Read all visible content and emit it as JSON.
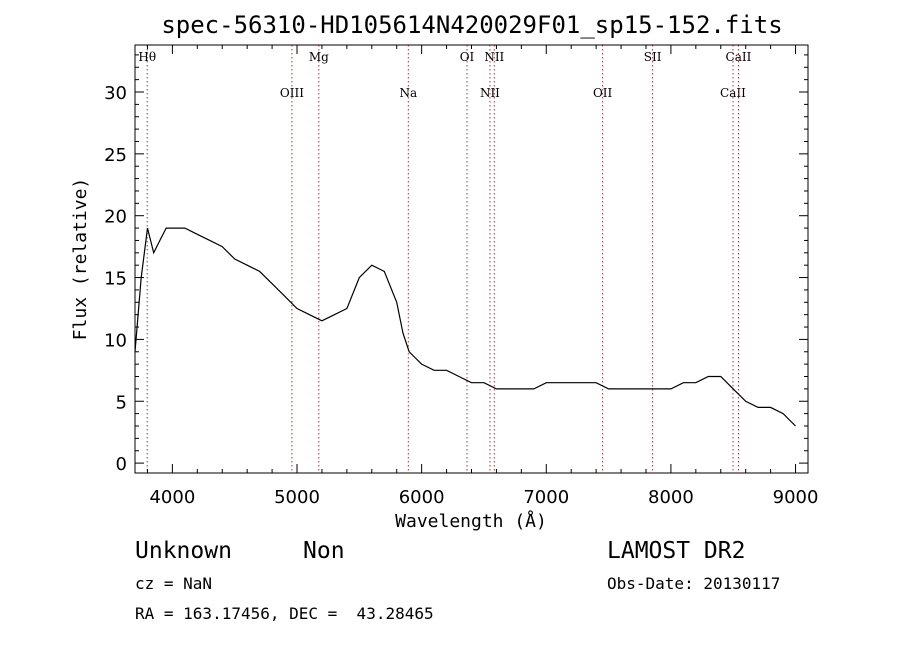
{
  "chart_data": {
    "type": "line",
    "title": "spec-56310-HD105614N420029F01_sp15-152.fits",
    "xlabel": "Wavelength (Å)",
    "ylabel": "Flux (relative)",
    "xlim": [
      3700,
      9100
    ],
    "ylim": [
      -0.8,
      33.8
    ],
    "x_ticks": [
      4000,
      5000,
      6000,
      7000,
      8000,
      9000
    ],
    "y_ticks": [
      0,
      5,
      10,
      15,
      20,
      25,
      30
    ],
    "series": [
      {
        "x": [
          3700,
          3750,
          3800,
          3850,
          3900,
          3950,
          4000,
          4100,
          4200,
          4300,
          4400,
          4500,
          4600,
          4700,
          4800,
          4900,
          5000,
          5100,
          5200,
          5300,
          5400,
          5500,
          5600,
          5700,
          5800,
          5850,
          5900,
          5950,
          6000,
          6100,
          6200,
          6300,
          6400,
          6500,
          6600,
          6700,
          6800,
          6900,
          7000,
          7100,
          7200,
          7300,
          7400,
          7500,
          7600,
          7700,
          7800,
          7900,
          8000,
          8100,
          8200,
          8300,
          8400,
          8500,
          8600,
          8700,
          8800,
          8900,
          9000
        ],
        "values": [
          9,
          15,
          19,
          17,
          18,
          19,
          19,
          19,
          18.5,
          18,
          17.5,
          16.5,
          16,
          15.5,
          14.5,
          13.5,
          12.5,
          12,
          11.5,
          12,
          12.5,
          15,
          16,
          15.5,
          13,
          10.5,
          9,
          8.5,
          8,
          7.5,
          7.5,
          7,
          6.5,
          6.5,
          6,
          6,
          6,
          6,
          6.5,
          6.5,
          6.5,
          6.5,
          6.5,
          6,
          6,
          6,
          6,
          6,
          6,
          6.5,
          6.5,
          7,
          7,
          6,
          5,
          4.5,
          4.5,
          4,
          3
        ]
      }
    ],
    "spectral_lines": [
      {
        "label": "Hθ",
        "wavelength": 3798
      },
      {
        "label": "OIII",
        "wavelength": 4959
      },
      {
        "label": "Mg",
        "wavelength": 5175
      },
      {
        "label": "Na",
        "wavelength": 5893
      },
      {
        "label": "OI",
        "wavelength": 6364
      },
      {
        "label": "NII",
        "wavelength": 6548
      },
      {
        "label": "NII",
        "wavelength": 6583
      },
      {
        "label": "OII",
        "wavelength": 7452
      },
      {
        "label": "SII",
        "wavelength": 7853
      },
      {
        "label": "CaII",
        "wavelength": 8498
      },
      {
        "label": "CaII",
        "wavelength": 8542
      }
    ]
  },
  "info": {
    "object_class": "Unknown",
    "subclass": "Non",
    "survey": "LAMOST DR2",
    "redshift": "cz = NaN",
    "obs_date": "Obs-Date: 20130117",
    "coords": "RA = 163.17456, DEC =  43.28465"
  }
}
